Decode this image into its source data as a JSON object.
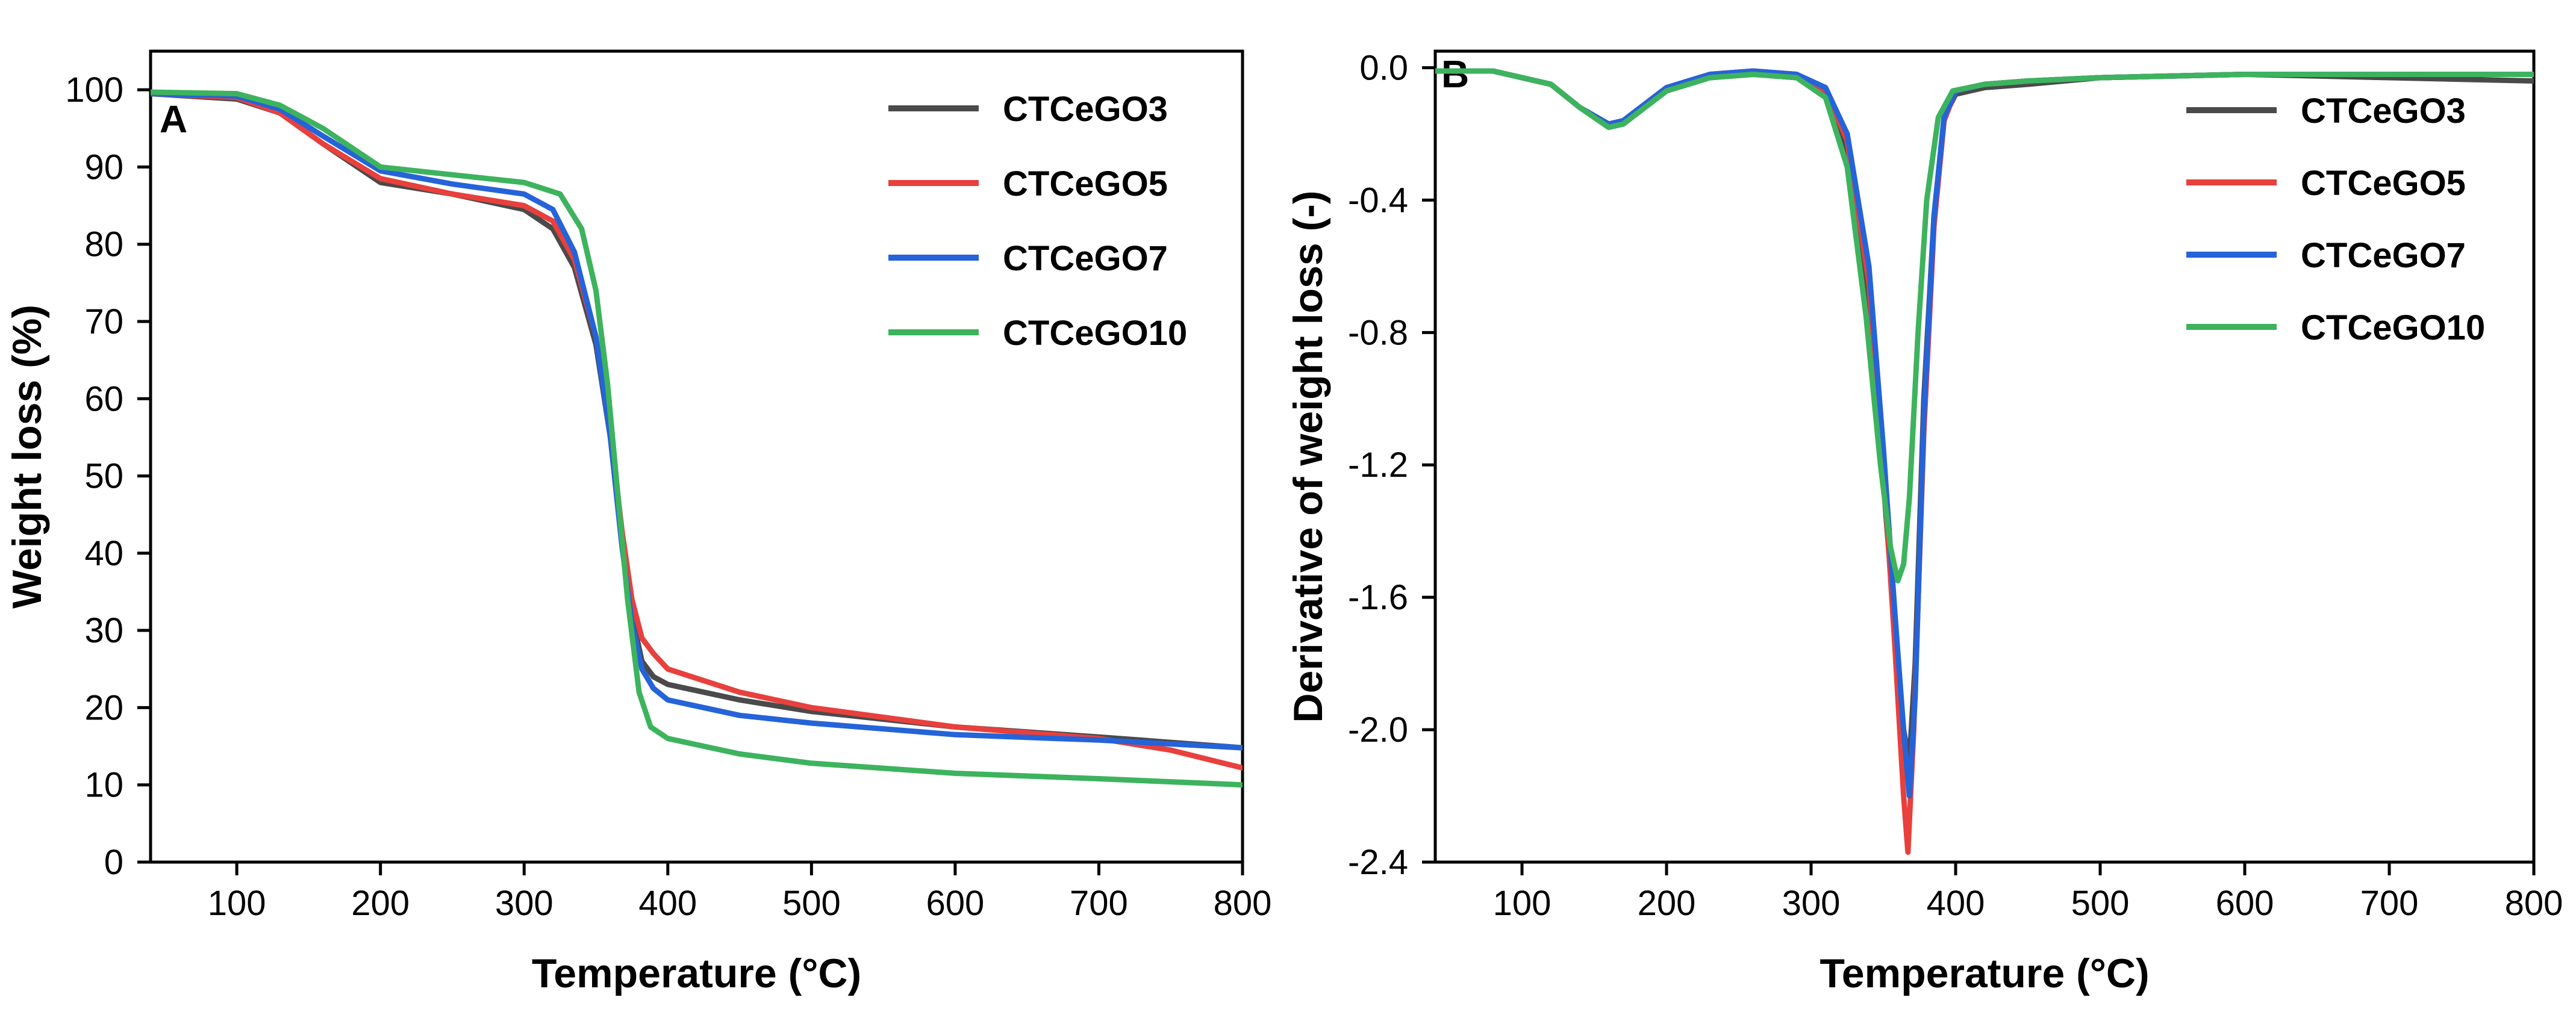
{
  "figure_title": "",
  "chart_data": [
    {
      "type": "line",
      "panel": "A",
      "title": "",
      "xlabel": "Temperature (°C)",
      "ylabel": "Weight loss (%)",
      "xlim": [
        40,
        800
      ],
      "ylim": [
        0,
        105
      ],
      "xticks": [
        100,
        200,
        300,
        400,
        500,
        600,
        700,
        800
      ],
      "yticks": [
        0,
        10,
        20,
        30,
        40,
        50,
        60,
        70,
        80,
        90,
        100
      ],
      "tick_decimals": 0,
      "legend_position": "top-right",
      "grid": false,
      "series": [
        {
          "name": "CTCeGO3",
          "color": "#4a4a4a",
          "x": [
            40,
            100,
            130,
            160,
            200,
            250,
            300,
            320,
            335,
            350,
            360,
            368,
            375,
            382,
            390,
            400,
            450,
            500,
            600,
            700,
            800
          ],
          "y": [
            99.5,
            98.8,
            97,
            93,
            88,
            86.5,
            84.5,
            82,
            77,
            67,
            55,
            42,
            32,
            26,
            24,
            23,
            21,
            19.5,
            17.5,
            16.2,
            14.8
          ]
        },
        {
          "name": "CTCeGO5",
          "color": "#e8403c",
          "x": [
            40,
            100,
            130,
            160,
            200,
            250,
            300,
            320,
            335,
            350,
            360,
            368,
            375,
            382,
            390,
            400,
            450,
            500,
            600,
            700,
            750,
            800
          ],
          "y": [
            99.5,
            99,
            97,
            93,
            88.5,
            86.5,
            85,
            83,
            78,
            68,
            56,
            43,
            34,
            29,
            27,
            25,
            22,
            20,
            17.5,
            16,
            14.5,
            12.2
          ]
        },
        {
          "name": "CTCeGO7",
          "color": "#2563d9",
          "x": [
            40,
            100,
            130,
            160,
            200,
            250,
            300,
            320,
            335,
            350,
            360,
            368,
            375,
            382,
            390,
            400,
            450,
            500,
            600,
            700,
            800
          ],
          "y": [
            99.5,
            99.2,
            97.5,
            94,
            89.5,
            87.8,
            86.5,
            84.5,
            79,
            68,
            55,
            41,
            31,
            25,
            22.5,
            21,
            19,
            18,
            16.5,
            15.8,
            14.8
          ]
        },
        {
          "name": "CTCeGO10",
          "color": "#3db35e",
          "x": [
            40,
            100,
            130,
            160,
            200,
            250,
            300,
            325,
            340,
            350,
            358,
            365,
            372,
            380,
            388,
            400,
            450,
            500,
            600,
            700,
            800
          ],
          "y": [
            99.7,
            99.5,
            98,
            95,
            90,
            89,
            88,
            86.5,
            82,
            74,
            62,
            48,
            34,
            22,
            17.5,
            16,
            14,
            12.8,
            11.5,
            10.8,
            10
          ]
        }
      ]
    },
    {
      "type": "line",
      "panel": "B",
      "title": "",
      "xlabel": "Temperature (°C)",
      "ylabel": "Derivative of weight loss (-)",
      "xlim": [
        40,
        800
      ],
      "ylim": [
        -2.4,
        0.05
      ],
      "xticks": [
        100,
        200,
        300,
        400,
        500,
        600,
        700,
        800
      ],
      "yticks": [
        0.0,
        -0.4,
        -0.8,
        -1.2,
        -1.6,
        -2.0,
        -2.4
      ],
      "tick_decimals": 1,
      "legend_position": "top-right",
      "grid": false,
      "series": [
        {
          "name": "CTCeGO3",
          "color": "#4a4a4a",
          "x": [
            40,
            80,
            120,
            140,
            160,
            170,
            185,
            200,
            230,
            260,
            290,
            310,
            325,
            340,
            350,
            358,
            364,
            368,
            372,
            378,
            385,
            392,
            400,
            420,
            450,
            500,
            600,
            700,
            800
          ],
          "y": [
            -0.01,
            -0.01,
            -0.05,
            -0.12,
            -0.18,
            -0.17,
            -0.12,
            -0.07,
            -0.03,
            -0.02,
            -0.03,
            -0.08,
            -0.25,
            -0.7,
            -1.25,
            -1.7,
            -2.0,
            -2.1,
            -1.8,
            -1.0,
            -0.45,
            -0.15,
            -0.08,
            -0.06,
            -0.05,
            -0.03,
            -0.02,
            -0.03,
            -0.04
          ]
        },
        {
          "name": "CTCeGO5",
          "color": "#e8403c",
          "x": [
            40,
            80,
            120,
            140,
            160,
            170,
            185,
            200,
            230,
            260,
            290,
            310,
            325,
            340,
            350,
            358,
            364,
            367,
            371,
            378,
            385,
            392,
            400,
            420,
            450,
            500,
            600,
            700,
            800
          ],
          "y": [
            -0.01,
            -0.01,
            -0.05,
            -0.12,
            -0.17,
            -0.16,
            -0.11,
            -0.06,
            -0.02,
            -0.01,
            -0.02,
            -0.07,
            -0.22,
            -0.65,
            -1.2,
            -1.75,
            -2.2,
            -2.37,
            -2.0,
            -1.1,
            -0.48,
            -0.16,
            -0.07,
            -0.05,
            -0.04,
            -0.03,
            -0.02,
            -0.02,
            -0.02
          ]
        },
        {
          "name": "CTCeGO7",
          "color": "#2563d9",
          "x": [
            40,
            80,
            120,
            140,
            160,
            170,
            185,
            200,
            230,
            260,
            290,
            310,
            325,
            340,
            350,
            358,
            364,
            368,
            372,
            378,
            385,
            392,
            400,
            420,
            450,
            500,
            600,
            700,
            800
          ],
          "y": [
            -0.01,
            -0.01,
            -0.05,
            -0.12,
            -0.17,
            -0.16,
            -0.11,
            -0.06,
            -0.02,
            -0.01,
            -0.02,
            -0.06,
            -0.2,
            -0.6,
            -1.15,
            -1.65,
            -2.0,
            -2.2,
            -1.9,
            -1.05,
            -0.45,
            -0.15,
            -0.07,
            -0.05,
            -0.04,
            -0.03,
            -0.02,
            -0.02,
            -0.02
          ]
        },
        {
          "name": "CTCeGO10",
          "color": "#3db35e",
          "x": [
            40,
            80,
            120,
            140,
            160,
            170,
            185,
            200,
            230,
            260,
            290,
            310,
            325,
            338,
            348,
            355,
            360,
            364,
            368,
            374,
            380,
            388,
            398,
            420,
            450,
            500,
            600,
            700,
            800
          ],
          "y": [
            -0.01,
            -0.01,
            -0.05,
            -0.12,
            -0.18,
            -0.17,
            -0.12,
            -0.07,
            -0.03,
            -0.02,
            -0.03,
            -0.09,
            -0.3,
            -0.75,
            -1.2,
            -1.45,
            -1.55,
            -1.5,
            -1.3,
            -0.8,
            -0.4,
            -0.15,
            -0.07,
            -0.05,
            -0.04,
            -0.03,
            -0.02,
            -0.02,
            -0.02
          ]
        }
      ]
    }
  ]
}
